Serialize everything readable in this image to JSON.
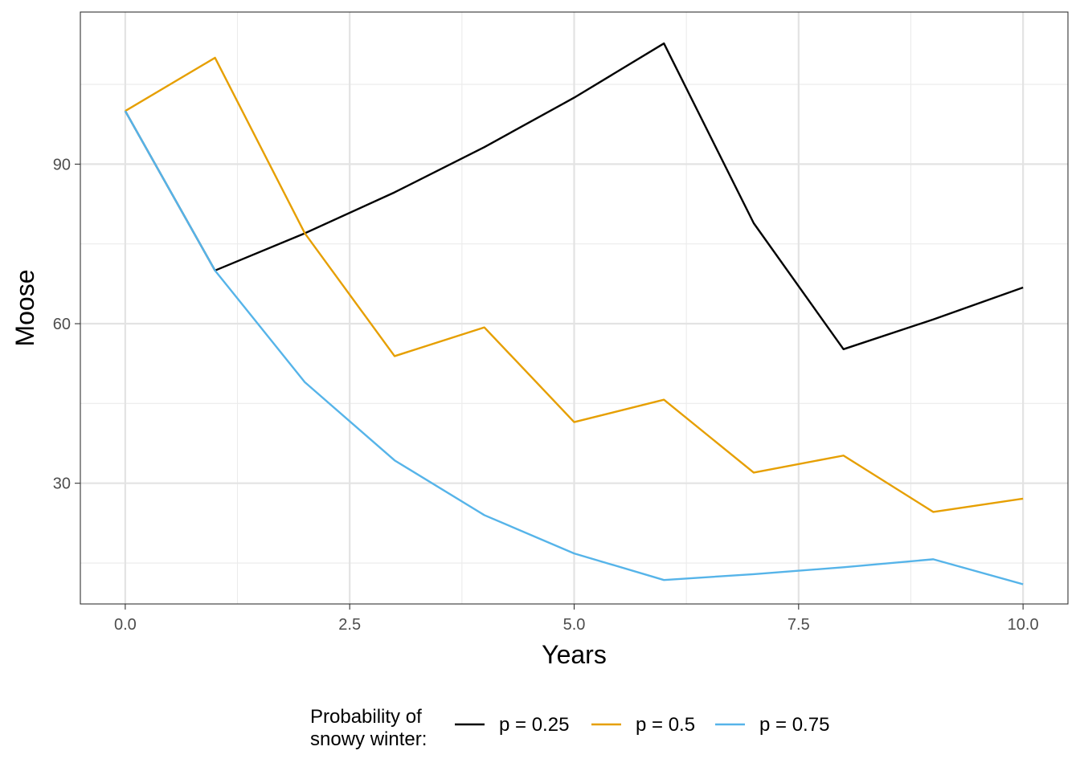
{
  "chart_data": {
    "type": "line",
    "xlabel": "Years",
    "ylabel": "Moose",
    "xlim": [
      -0.5,
      10.5
    ],
    "ylim": [
      7.3,
      118.6
    ],
    "x_ticks": [
      0.0,
      2.5,
      5.0,
      7.5,
      10.0
    ],
    "x_tick_labels": [
      "0.0",
      "2.5",
      "5.0",
      "7.5",
      "10.0"
    ],
    "y_ticks": [
      30,
      60,
      90
    ],
    "y_tick_labels": [
      "30",
      "60",
      "90"
    ],
    "x_minor_ticks": [
      1.25,
      3.75,
      6.25,
      8.75
    ],
    "y_minor_ticks": [
      15,
      45,
      75,
      105
    ],
    "grid": true,
    "legend_title_lines": [
      "Probability of",
      "snowy winter:"
    ],
    "legend_position": "bottom",
    "x": [
      0,
      1,
      2,
      3,
      4,
      5,
      6,
      7,
      8,
      9,
      10
    ],
    "series": [
      {
        "name": "p = 0.25",
        "color": "#000000",
        "values": [
          100,
          70,
          77,
          84.7,
          93.2,
          102.5,
          112.7,
          78.9,
          55.2,
          60.8,
          66.8
        ]
      },
      {
        "name": "p = 0.5",
        "color": "#E69F00",
        "values": [
          100,
          110,
          77,
          53.9,
          59.3,
          41.5,
          45.7,
          32.0,
          35.2,
          24.6,
          27.1
        ]
      },
      {
        "name": "p = 0.75",
        "color": "#56B4E9",
        "values": [
          100,
          70,
          49,
          34.3,
          24.0,
          16.8,
          11.8,
          12.9,
          14.2,
          15.7,
          11.0
        ]
      }
    ]
  }
}
